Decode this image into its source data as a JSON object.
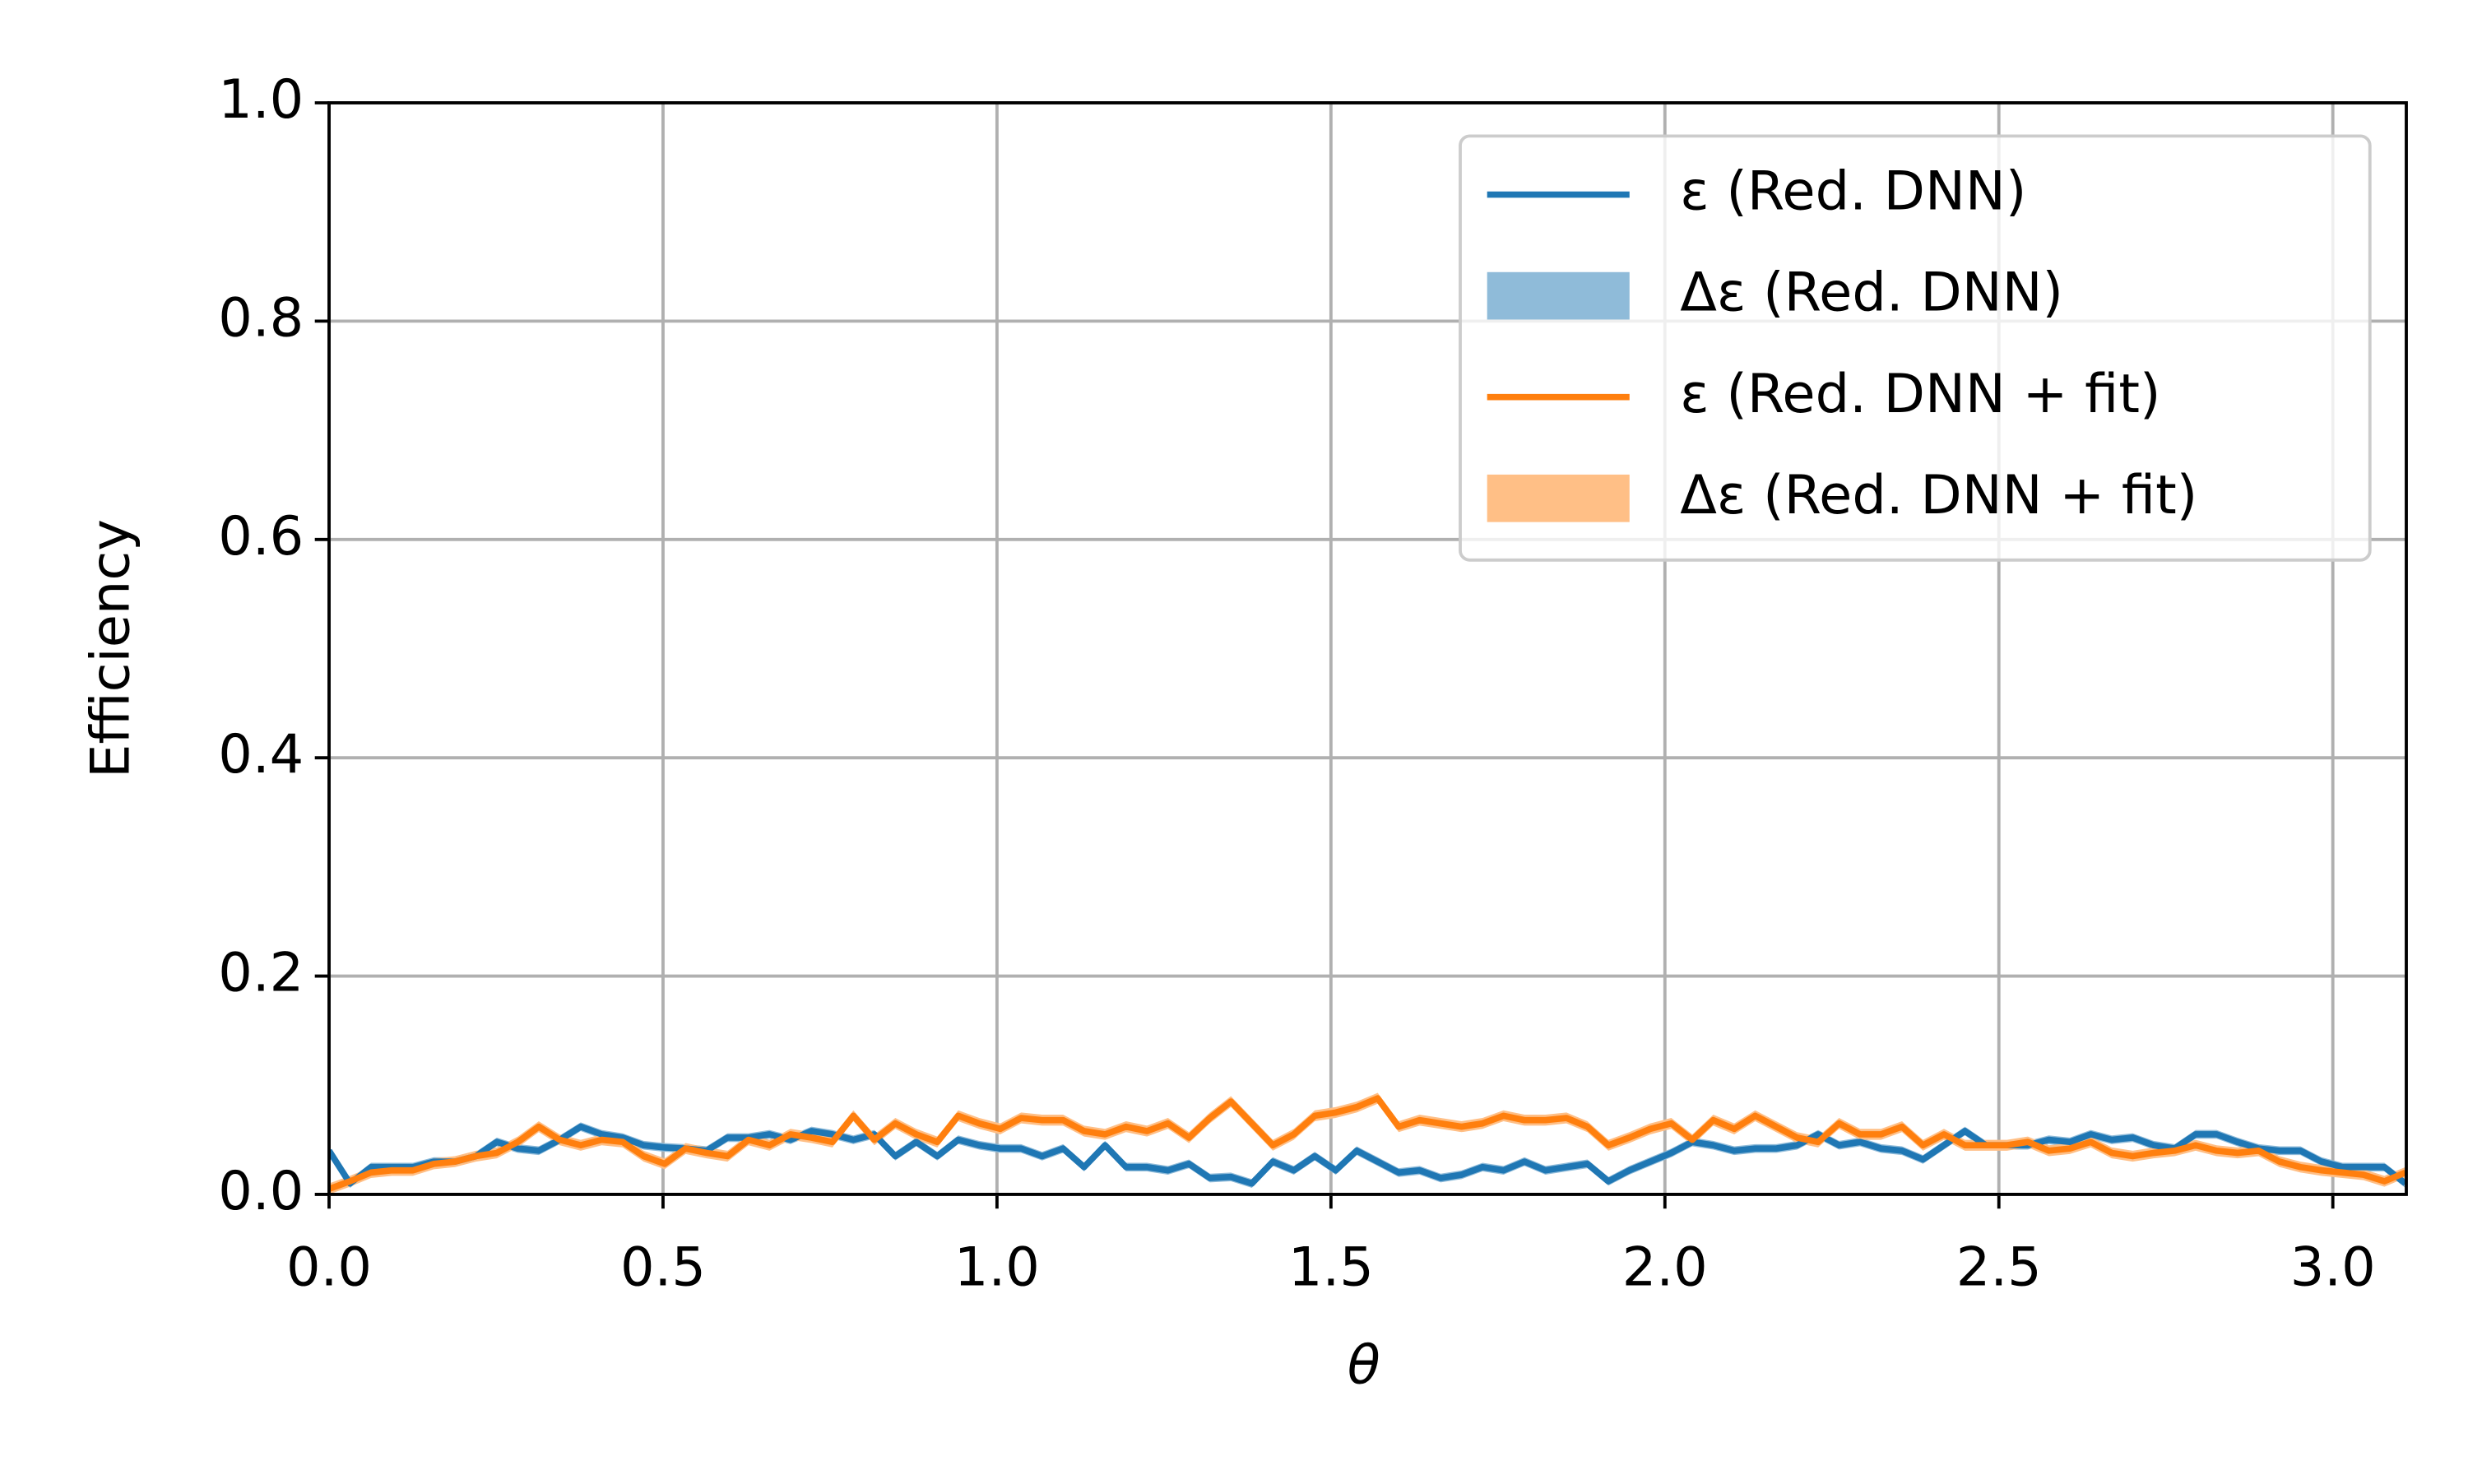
{
  "chart_data": {
    "type": "line",
    "xlabel": "θ",
    "ylabel": "Efficiency",
    "x": [
      0,
      0.0314,
      0.0628,
      0.0942,
      0.1256,
      0.157,
      0.1884,
      0.2198,
      0.2512,
      0.2826,
      0.314,
      0.3454,
      0.3768,
      0.4082,
      0.4396,
      0.471,
      0.5024,
      0.5338,
      0.5652,
      0.5966,
      0.628,
      0.6594,
      0.6908,
      0.7222,
      0.7536,
      0.785,
      0.8164,
      0.8478,
      0.8792,
      0.9106,
      0.942,
      0.9734,
      1.0048,
      1.0362,
      1.0676,
      1.099,
      1.1304,
      1.1618,
      1.1932,
      1.2246,
      1.256,
      1.2874,
      1.3188,
      1.3502,
      1.3816,
      1.413,
      1.4444,
      1.4758,
      1.5072,
      1.5386,
      1.57,
      1.6014,
      1.6328,
      1.6642,
      1.6956,
      1.727,
      1.7584,
      1.7898,
      1.8212,
      1.8526,
      1.884,
      1.9154,
      1.9468,
      1.9782,
      2.0096,
      2.041,
      2.0724,
      2.1038,
      2.1352,
      2.1666,
      2.198,
      2.2294,
      2.2608,
      2.2922,
      2.3236,
      2.355,
      2.3864,
      2.4178,
      2.4492,
      2.4806,
      2.512,
      2.5434,
      2.5748,
      2.6062,
      2.6376,
      2.669,
      2.7004,
      2.7318,
      2.7632,
      2.7946,
      2.826,
      2.8574,
      2.8888,
      2.9202,
      2.9516,
      2.983,
      3.0144,
      3.0458,
      3.0772,
      3.1086
    ],
    "series": [
      {
        "name": "ε (Red. DNN)",
        "band_name": "Δε (Red. DNN)",
        "color": "#1f77b4",
        "band_color": "#8fbbd9",
        "error": 0.004,
        "values": [
          0.04,
          0.01,
          0.025,
          0.025,
          0.025,
          0.03,
          0.03,
          0.035,
          0.048,
          0.042,
          0.04,
          0.05,
          0.062,
          0.055,
          0.052,
          0.045,
          0.043,
          0.042,
          0.04,
          0.052,
          0.052,
          0.055,
          0.05,
          0.058,
          0.055,
          0.05,
          0.055,
          0.035,
          0.048,
          0.035,
          0.05,
          0.045,
          0.042,
          0.042,
          0.035,
          0.042,
          0.025,
          0.045,
          0.025,
          0.025,
          0.022,
          0.028,
          0.015,
          0.016,
          0.01,
          0.03,
          0.022,
          0.035,
          0.022,
          0.04,
          0.03,
          0.02,
          0.022,
          0.015,
          0.018,
          0.025,
          0.022,
          0.03,
          0.022,
          0.025,
          0.028,
          0.012,
          0.022,
          0.03,
          0.038,
          0.048,
          0.045,
          0.04,
          0.042,
          0.042,
          0.045,
          0.055,
          0.045,
          0.048,
          0.042,
          0.04,
          0.032,
          0.045,
          0.058,
          0.045,
          0.045,
          0.045,
          0.05,
          0.048,
          0.055,
          0.05,
          0.052,
          0.045,
          0.042,
          0.055,
          0.055,
          0.048,
          0.042,
          0.04,
          0.04,
          0.03,
          0.025,
          0.025,
          0.025,
          0.01
        ]
      },
      {
        "name": "ε (Red. DNN + fit)",
        "band_name": "Δε (Red. DNN + fit)",
        "color": "#ff7f0e",
        "band_color": "#ffbf86",
        "error": 0.005,
        "values": [
          0.005,
          0.012,
          0.02,
          0.022,
          0.022,
          0.028,
          0.03,
          0.035,
          0.038,
          0.048,
          0.062,
          0.05,
          0.045,
          0.05,
          0.048,
          0.035,
          0.028,
          0.042,
          0.038,
          0.035,
          0.05,
          0.045,
          0.055,
          0.052,
          0.048,
          0.072,
          0.05,
          0.065,
          0.055,
          0.048,
          0.072,
          0.065,
          0.06,
          0.07,
          0.068,
          0.068,
          0.058,
          0.055,
          0.062,
          0.058,
          0.065,
          0.052,
          0.07,
          0.085,
          0.065,
          0.045,
          0.055,
          0.072,
          0.075,
          0.08,
          0.088,
          0.062,
          0.068,
          0.065,
          0.062,
          0.065,
          0.072,
          0.068,
          0.068,
          0.07,
          0.062,
          0.045,
          0.052,
          0.06,
          0.065,
          0.05,
          0.068,
          0.06,
          0.072,
          0.062,
          0.052,
          0.048,
          0.065,
          0.055,
          0.055,
          0.062,
          0.045,
          0.055,
          0.045,
          0.045,
          0.045,
          0.048,
          0.04,
          0.042,
          0.048,
          0.038,
          0.035,
          0.038,
          0.04,
          0.045,
          0.04,
          0.038,
          0.04,
          0.03,
          0.025,
          0.022,
          0.02,
          0.018,
          0.012,
          0.02
        ]
      }
    ],
    "xlim": [
      0,
      3.11
    ],
    "ylim": [
      0,
      1
    ],
    "xticks": [
      {
        "value": 0,
        "label": "0.0"
      },
      0.5,
      {
        "value": 1,
        "label": "1.0"
      },
      1.5,
      {
        "value": 2,
        "label": "2.0"
      },
      2.5,
      {
        "value": 3,
        "label": "3.0"
      }
    ],
    "yticks": [
      {
        "value": 0,
        "label": "0.0"
      },
      0.2,
      0.4,
      0.6,
      0.8,
      {
        "value": 1,
        "label": "1.0"
      }
    ],
    "grid": true,
    "legend": "upper right"
  }
}
